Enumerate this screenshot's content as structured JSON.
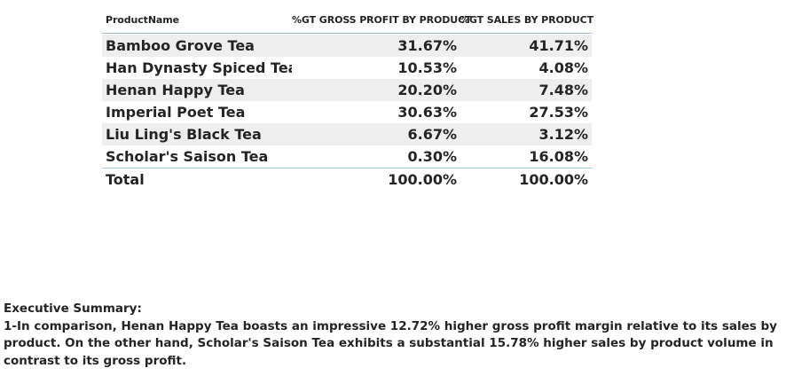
{
  "table": {
    "headers": {
      "product": "ProductName",
      "gross_profit": "%GT GROSS PROFIT BY PRODUCT",
      "sales": "%GT SALES BY PRODUCT"
    },
    "rows": [
      {
        "name": "Bamboo Grove Tea",
        "gross_profit": "31.67%",
        "sales": "41.71%"
      },
      {
        "name": "Han Dynasty Spiced Tea",
        "gross_profit": "10.53%",
        "sales": "4.08%"
      },
      {
        "name": "Henan Happy Tea",
        "gross_profit": "20.20%",
        "sales": "7.48%"
      },
      {
        "name": "Imperial Poet Tea",
        "gross_profit": "30.63%",
        "sales": "27.53%"
      },
      {
        "name": "Liu Ling's Black Tea",
        "gross_profit": "6.67%",
        "sales": "3.12%"
      },
      {
        "name": "Scholar's Saison Tea",
        "gross_profit": "0.30%",
        "sales": "16.08%"
      }
    ],
    "total": {
      "name": "Total",
      "gross_profit": "100.00%",
      "sales": "100.00%"
    }
  },
  "summary": {
    "title": "Executive Summary:",
    "text": "1-In comparison, Henan Happy Tea boasts an impressive 12.72% higher gross profit margin relative to its sales by product. On the other hand, Scholar's Saison Tea exhibits a substantial 15.78% higher sales by product volume in contrast to its gross profit."
  }
}
